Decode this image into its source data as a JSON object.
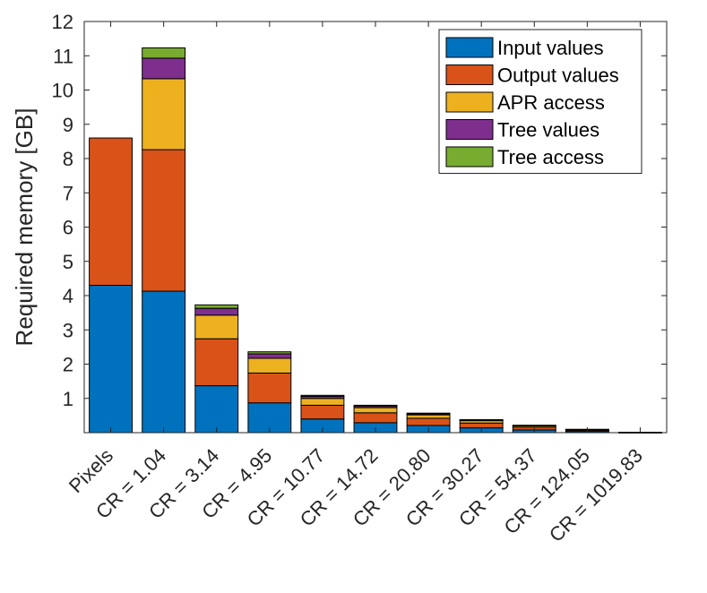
{
  "chart_data": {
    "type": "bar",
    "stacked": true,
    "title": "",
    "xlabel": "",
    "ylabel": "Required memory [GB]",
    "ylim": [
      0,
      12
    ],
    "yticks": [
      1,
      2,
      3,
      4,
      5,
      6,
      7,
      8,
      9,
      10,
      11,
      12
    ],
    "grid": false,
    "legend_position": "top-right",
    "categories": [
      "Pixels",
      "CR = 1.04",
      "CR = 3.14",
      "CR = 4.95",
      "CR = 10.77",
      "CR = 14.72",
      "CR = 20.80",
      "CR = 30.27",
      "CR = 54.37",
      "CR = 124.05",
      "CR = 1019.83"
    ],
    "series": [
      {
        "name": "Input values",
        "color": "#0072BD",
        "values": [
          4.3,
          4.13,
          1.37,
          0.87,
          0.4,
          0.29,
          0.21,
          0.14,
          0.08,
          0.035,
          0.004
        ]
      },
      {
        "name": "Output values",
        "color": "#D95319",
        "values": [
          4.3,
          4.13,
          1.37,
          0.87,
          0.4,
          0.29,
          0.21,
          0.14,
          0.08,
          0.035,
          0.004
        ]
      },
      {
        "name": "APR access",
        "color": "#EDB120",
        "values": [
          0.0,
          2.07,
          0.69,
          0.43,
          0.2,
          0.15,
          0.1,
          0.07,
          0.04,
          0.018,
          0.002
        ]
      },
      {
        "name": "Tree values",
        "color": "#7E2F8E",
        "values": [
          0.0,
          0.6,
          0.2,
          0.13,
          0.06,
          0.05,
          0.03,
          0.02,
          0.01,
          0.006,
          0.001
        ]
      },
      {
        "name": "Tree access",
        "color": "#77AC30",
        "values": [
          0.0,
          0.3,
          0.1,
          0.06,
          0.03,
          0.02,
          0.02,
          0.01,
          0.006,
          0.003,
          0.001
        ]
      }
    ]
  }
}
